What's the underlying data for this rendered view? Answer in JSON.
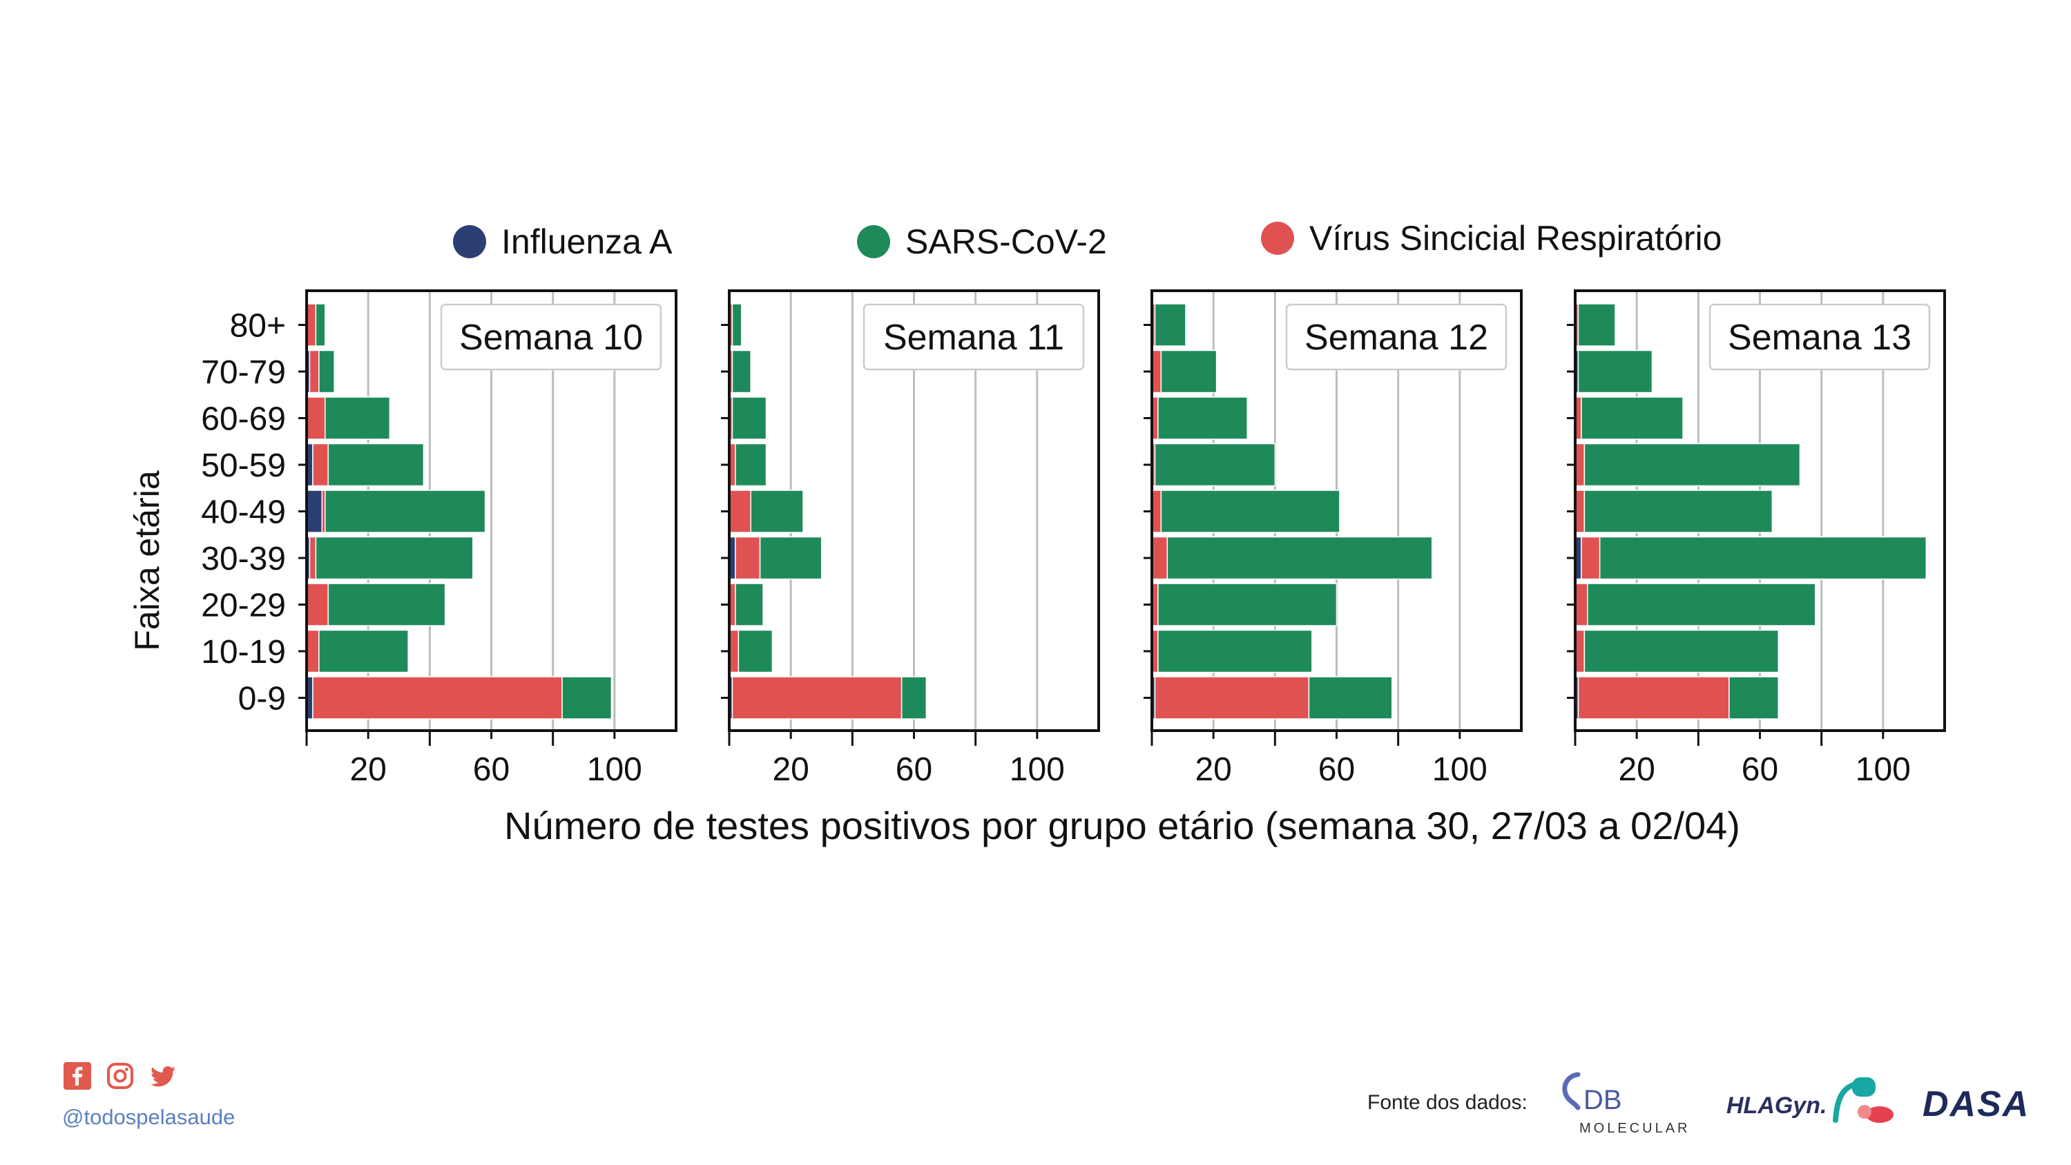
{
  "legend": {
    "items": [
      {
        "label": "Influenza A",
        "color": "#2b3f73"
      },
      {
        "label": "SARS-CoV-2",
        "color": "#1e8a5a"
      },
      {
        "label": "Vírus Sincicial Respiratório",
        "color": "#e05252"
      }
    ]
  },
  "axes": {
    "ylabel": "Faixa etária",
    "xlabel": "Número de testes positivos por grupo etário (semana 30, 27/03 a 02/04)"
  },
  "colors": {
    "influenza": "#2b3f73",
    "sars": "#1e8a5a",
    "vsr": "#e05252",
    "grid": "#bdbdbd",
    "axis": "#111111"
  },
  "chart_data": [
    {
      "type": "bar",
      "orientation": "horizontal",
      "stacked": true,
      "title": "Semana 10",
      "categories": [
        "0-9",
        "10-19",
        "20-29",
        "30-39",
        "40-49",
        "50-59",
        "60-69",
        "70-79",
        "80+"
      ],
      "xlim": [
        0,
        120
      ],
      "xticks": [
        20,
        60,
        100
      ],
      "grid": "x",
      "series": [
        {
          "name": "Influenza A",
          "values": [
            2,
            0,
            0,
            1,
            5,
            2,
            0,
            1,
            0
          ]
        },
        {
          "name": "Vírus Sincicial Respiratório",
          "values": [
            81,
            4,
            7,
            2,
            1,
            5,
            6,
            3,
            3
          ]
        },
        {
          "name": "SARS-CoV-2",
          "values": [
            16,
            29,
            38,
            51,
            52,
            31,
            21,
            5,
            3
          ]
        }
      ]
    },
    {
      "type": "bar",
      "orientation": "horizontal",
      "stacked": true,
      "title": "Semana 11",
      "categories": [
        "0-9",
        "10-19",
        "20-29",
        "30-39",
        "40-49",
        "50-59",
        "60-69",
        "70-79",
        "80+"
      ],
      "xlim": [
        0,
        120
      ],
      "xticks": [
        20,
        60,
        100
      ],
      "grid": "x",
      "series": [
        {
          "name": "Influenza A",
          "values": [
            1,
            0,
            0,
            2,
            0,
            0,
            0,
            0,
            0
          ]
        },
        {
          "name": "Vírus Sincicial Respiratório",
          "values": [
            55,
            3,
            2,
            8,
            7,
            2,
            1,
            1,
            1
          ]
        },
        {
          "name": "SARS-CoV-2",
          "values": [
            8,
            11,
            9,
            20,
            17,
            10,
            11,
            6,
            3
          ]
        }
      ]
    },
    {
      "type": "bar",
      "orientation": "horizontal",
      "stacked": true,
      "title": "Semana 12",
      "categories": [
        "0-9",
        "10-19",
        "20-29",
        "30-39",
        "40-49",
        "50-59",
        "60-69",
        "70-79",
        "80+"
      ],
      "xlim": [
        0,
        120
      ],
      "xticks": [
        20,
        60,
        100
      ],
      "grid": "x",
      "series": [
        {
          "name": "Influenza A",
          "values": [
            1,
            0,
            0,
            0,
            0,
            0,
            0,
            0,
            0
          ]
        },
        {
          "name": "Vírus Sincicial Respiratório",
          "values": [
            50,
            2,
            2,
            5,
            3,
            1,
            2,
            3,
            1
          ]
        },
        {
          "name": "SARS-CoV-2",
          "values": [
            27,
            50,
            58,
            86,
            58,
            39,
            29,
            18,
            10
          ]
        }
      ]
    },
    {
      "type": "bar",
      "orientation": "horizontal",
      "stacked": true,
      "title": "Semana 13",
      "categories": [
        "0-9",
        "10-19",
        "20-29",
        "30-39",
        "40-49",
        "50-59",
        "60-69",
        "70-79",
        "80+"
      ],
      "xlim": [
        0,
        120
      ],
      "xticks": [
        20,
        60,
        100
      ],
      "grid": "x",
      "series": [
        {
          "name": "Influenza A",
          "values": [
            1,
            0,
            0,
            2,
            0,
            0,
            0,
            1,
            0
          ]
        },
        {
          "name": "Vírus Sincicial Respiratório",
          "values": [
            49,
            3,
            4,
            6,
            3,
            3,
            2,
            0,
            1
          ]
        },
        {
          "name": "SARS-CoV-2",
          "values": [
            16,
            63,
            74,
            106,
            61,
            70,
            33,
            24,
            12
          ]
        }
      ]
    }
  ],
  "footer": {
    "handle": "@todospelasaude",
    "source_label": "Fonte dos dados:",
    "db_logo_text": "DB",
    "db_logo_sub": "MOLECULAR",
    "hla_logo_text": "HLAGyn.",
    "dasa_logo_text": "DASA",
    "icons": [
      "facebook-icon",
      "instagram-icon",
      "twitter-icon"
    ]
  }
}
